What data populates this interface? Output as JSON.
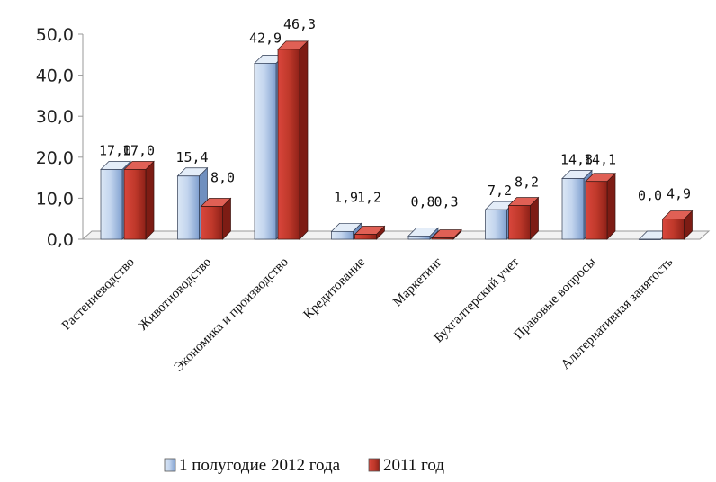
{
  "chart_data": {
    "type": "bar",
    "categories": [
      "Растениеводство",
      "Животноводство",
      "Экономика и производство",
      "Кредитование",
      "Маркетинг",
      "Бухгалтерский учет",
      "Правовые вопросы",
      "Альтернативная занятость"
    ],
    "series": [
      {
        "name": "1 полугодие 2012 года",
        "values": [
          17.0,
          15.4,
          42.9,
          1.9,
          0.8,
          7.2,
          14.8,
          0.0
        ],
        "labels": [
          "17,0",
          "15,4",
          "42,9",
          "1,9",
          "0,8",
          "7,2",
          "14,8",
          "0,0"
        ],
        "color": "#b8cce4"
      },
      {
        "name": "2011 год",
        "values": [
          17.0,
          8.0,
          46.3,
          1.2,
          0.3,
          8.2,
          14.1,
          4.9
        ],
        "labels": [
          "17,0",
          "8,0",
          "46,3",
          "1,2",
          "0,3",
          "8,2",
          "14,1",
          "4,9"
        ],
        "color": "#c0392b"
      }
    ],
    "yticks": [
      "0,0",
      "10,0",
      "20,0",
      "30,0",
      "40,0",
      "50,0"
    ],
    "ylim": [
      0,
      50
    ],
    "grid": false,
    "legend": "bottom",
    "style": "3d-clustered-column"
  }
}
